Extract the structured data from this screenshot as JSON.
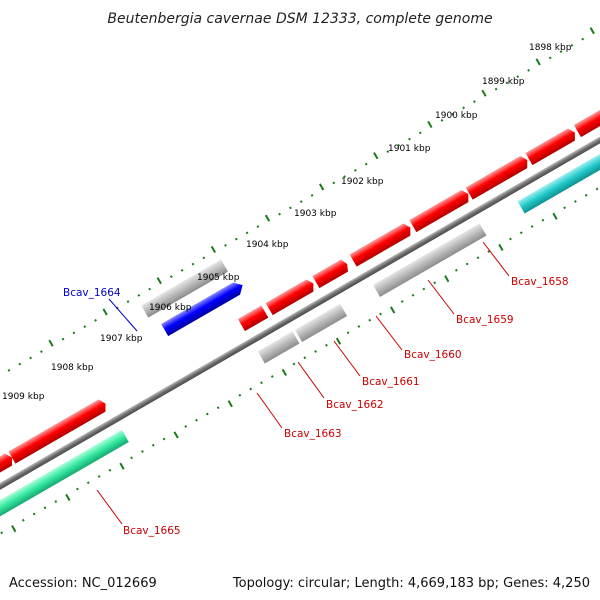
{
  "title": "Beutenbergia cavernae DSM 12333, complete genome",
  "footer": {
    "accession": "Accession: NC_012669",
    "summary": "Topology: circular; Length: 4,669,183 bp; Genes: 4,250"
  },
  "colors": {
    "backbone": "#7a7a7a",
    "tick": "#1a7a1a",
    "forward_cds": "#ff0000",
    "highlight_cds": "#0000ff",
    "pseudo_gene": "#b4b4b4",
    "rna_teal": "#22c8c8",
    "rna_green": "#33e6a0",
    "label_red": "#cc0000",
    "label_blue": "#0000cc"
  },
  "kbp_ticks": [
    "1898 kbp",
    "1899 kbp",
    "1900 kbp",
    "1901 kbp",
    "1902 kbp",
    "1903 kbp",
    "1904 kbp",
    "1905 kbp",
    "1906 kbp",
    "1907 kbp",
    "1908 kbp",
    "1909 kbp"
  ],
  "gene_labels": [
    {
      "name": "Bcav_1658",
      "color": "red"
    },
    {
      "name": "Bcav_1659",
      "color": "red"
    },
    {
      "name": "Bcav_1660",
      "color": "red"
    },
    {
      "name": "Bcav_1661",
      "color": "red"
    },
    {
      "name": "Bcav_1662",
      "color": "red"
    },
    {
      "name": "Bcav_1663",
      "color": "red"
    },
    {
      "name": "Bcav_1664",
      "color": "blue"
    },
    {
      "name": "Bcav_1665",
      "color": "red"
    }
  ]
}
